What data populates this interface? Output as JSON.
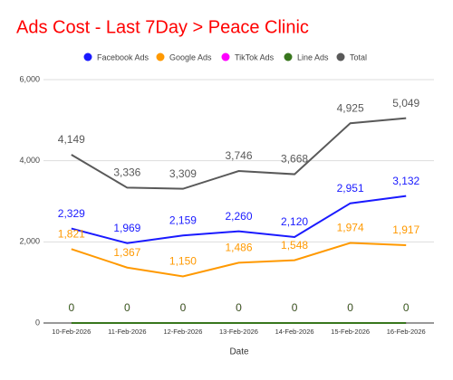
{
  "chart_data": {
    "type": "line",
    "title": "Ads Cost - Last 7Day > Peace Clinic",
    "xlabel": "Date",
    "categories": [
      "10-Feb-2026",
      "11-Feb-2026",
      "12-Feb-2026",
      "13-Feb-2026",
      "14-Feb-2026",
      "15-Feb-2026",
      "16-Feb-2026"
    ],
    "series": [
      {
        "name": "Facebook Ads",
        "color": "#1a1aff",
        "values": [
          2329,
          1969,
          2159,
          2260,
          2120,
          2951,
          3132
        ],
        "value_labels": [
          "2,329",
          "1,969",
          "2,159",
          "2,260",
          "2,120",
          "2,951",
          "3,132"
        ]
      },
      {
        "name": "Google Ads",
        "color": "#ff9900",
        "values": [
          1821,
          1367,
          1150,
          1486,
          1548,
          1974,
          1917
        ],
        "value_labels": [
          "1,821",
          "1,367",
          "1,150",
          "1,486",
          "1,548",
          "1,974",
          "1,917"
        ]
      },
      {
        "name": "TikTok Ads",
        "color": "#ff00ff",
        "values": [
          0,
          0,
          0,
          0,
          0,
          0,
          0
        ]
      },
      {
        "name": "Line Ads",
        "color": "#38761d",
        "values": [
          0,
          0,
          0,
          0,
          0,
          0,
          0
        ]
      },
      {
        "name": "Total",
        "color": "#595959",
        "values": [
          4149,
          3336,
          3309,
          3746,
          3668,
          4925,
          5049
        ],
        "value_labels": [
          "4,149",
          "3,336",
          "3,309",
          "3,746",
          "3,668",
          "4,925",
          "5,049"
        ]
      }
    ],
    "ylim": [
      0,
      6000
    ],
    "yticks": [
      0,
      {
        "value": 2000,
        "label": "2,000"
      },
      {
        "value": 4000,
        "label": "4,000"
      },
      {
        "value": 6000,
        "label": "6,000"
      }
    ],
    "grid": true,
    "legend": "top"
  }
}
